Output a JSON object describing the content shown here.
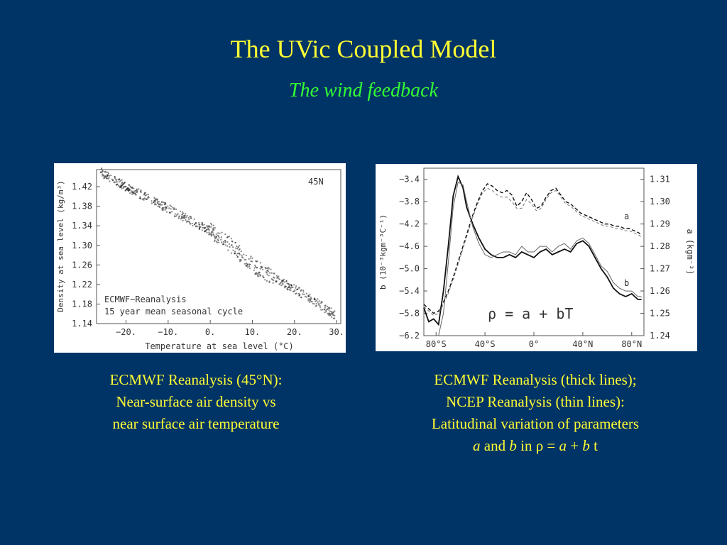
{
  "slide": {
    "title": "The UVic Coupled Model",
    "subtitle": "The wind feedback"
  },
  "left_caption": {
    "line1": "ECMWF Reanalysis (45°N):",
    "line2": "Near-surface air density vs",
    "line3": "near surface air temperature"
  },
  "right_caption": {
    "line1": "ECMWF Reanalysis (thick lines);",
    "line2": "NCEP Reanalysis (thin lines):",
    "line3": "Latitudinal variation of parameters",
    "a": "a",
    "and": "and",
    "b": "b",
    "in": "in ρ =",
    "a2": "a",
    "plus": "+",
    "b2": "b",
    "t": "t"
  },
  "colors": {
    "background": "#003366",
    "title": "#ffff33",
    "subtitle": "#33ff33",
    "caption": "#ffff33"
  },
  "chart_data": [
    {
      "type": "scatter",
      "xlabel": "Temperature at sea level (°C)",
      "ylabel": "Density at sea level (kg/m³)",
      "annotation_corner": "45N",
      "legend_line1": "ECMWF−Reanalysis",
      "legend_line2": "15 year mean seasonal cycle",
      "xlim": [
        -27,
        31
      ],
      "ylim": [
        1.14,
        1.455
      ],
      "x_ticks": [
        -20,
        -10,
        0,
        10,
        20,
        30
      ],
      "x_tick_labels": [
        "−20.",
        "−10.",
        "0.",
        "10.",
        "20.",
        "30."
      ],
      "y_ticks": [
        1.14,
        1.18,
        1.22,
        1.26,
        1.3,
        1.34,
        1.38,
        1.42
      ],
      "y_tick_labels": [
        "1.14",
        "1.18",
        "1.22",
        "1.26",
        "1.30",
        "1.34",
        "1.38",
        "1.42"
      ],
      "trend": {
        "x": [
          -26,
          -20,
          -10,
          0,
          5,
          10,
          15,
          20,
          25,
          30
        ],
        "y": [
          1.45,
          1.42,
          1.375,
          1.33,
          1.3,
          1.26,
          1.235,
          1.21,
          1.185,
          1.155
        ]
      }
    },
    {
      "type": "line",
      "formula": "ρ = a + bT",
      "left_axis_label": "b (10⁻³kgm⁻³C⁻¹)",
      "right_axis_label": "a (kgm⁻³)",
      "x_ticks": [
        -80,
        -40,
        0,
        40,
        80
      ],
      "x_tick_labels": [
        "80°S",
        "40°S",
        "0°",
        "40°N",
        "80°N"
      ],
      "xlim": [
        -90,
        90
      ],
      "b_ylim": [
        -6.2,
        -3.2
      ],
      "b_ticks": [
        -6.2,
        -5.8,
        -5.4,
        -5.0,
        -4.6,
        -4.2,
        -3.8,
        -3.4
      ],
      "b_tick_labels": [
        "−6.2",
        "−5.8",
        "−5.4",
        "−5.0",
        "−4.6",
        "−4.2",
        "−3.8",
        "−3.4"
      ],
      "a_ylim": [
        1.24,
        1.315
      ],
      "a_ticks": [
        1.24,
        1.25,
        1.26,
        1.27,
        1.28,
        1.29,
        1.3,
        1.31
      ],
      "a_tick_labels": [
        "1.24",
        "1.25",
        "1.26",
        "1.27",
        "1.28",
        "1.29",
        "1.30",
        "1.31"
      ],
      "series": [
        {
          "name": "b",
          "label": "b",
          "source": "ECMWF",
          "style": "solid-thick",
          "axis": "left",
          "x": [
            -90,
            -86,
            -82,
            -78,
            -74,
            -70,
            -66,
            -62,
            -58,
            -55,
            -50,
            -45,
            -40,
            -35,
            -30,
            -25,
            -20,
            -15,
            -10,
            -5,
            0,
            5,
            10,
            15,
            20,
            25,
            30,
            35,
            40,
            45,
            50,
            55,
            60,
            65,
            70,
            75,
            80,
            85,
            88
          ],
          "y": [
            -5.7,
            -5.95,
            -5.9,
            -6.0,
            -5.4,
            -4.6,
            -3.7,
            -3.35,
            -3.55,
            -3.9,
            -4.2,
            -4.45,
            -4.65,
            -4.75,
            -4.8,
            -4.8,
            -4.75,
            -4.8,
            -4.7,
            -4.75,
            -4.8,
            -4.7,
            -4.65,
            -4.75,
            -4.7,
            -4.65,
            -4.7,
            -4.55,
            -4.5,
            -4.6,
            -4.8,
            -5.0,
            -5.15,
            -5.35,
            -5.45,
            -5.5,
            -5.45,
            -5.55,
            -5.55
          ]
        },
        {
          "name": "b-ncep",
          "source": "NCEP",
          "style": "solid-thin",
          "axis": "left",
          "x": [
            -78,
            -74,
            -70,
            -66,
            -62,
            -58,
            -55,
            -50,
            -45,
            -40,
            -35,
            -30,
            -25,
            -20,
            -15,
            -10,
            -5,
            0,
            5,
            10,
            15,
            20,
            25,
            30,
            35,
            40,
            45,
            50,
            55,
            60,
            65,
            70,
            75,
            80,
            85,
            88
          ],
          "y": [
            -6.6,
            -5.8,
            -4.9,
            -3.9,
            -3.45,
            -3.5,
            -3.8,
            -4.25,
            -4.55,
            -4.75,
            -4.8,
            -4.75,
            -4.7,
            -4.7,
            -4.75,
            -4.6,
            -4.7,
            -4.7,
            -4.6,
            -4.6,
            -4.7,
            -4.6,
            -4.55,
            -4.65,
            -4.5,
            -4.45,
            -4.55,
            -4.75,
            -4.95,
            -5.05,
            -5.25,
            -5.35,
            -5.4,
            -5.4,
            -5.5,
            -5.5
          ]
        },
        {
          "name": "a",
          "label": "a",
          "source": "ECMWF",
          "style": "dashed-thick",
          "axis": "right",
          "x": [
            -90,
            -86,
            -82,
            -78,
            -74,
            -70,
            -66,
            -62,
            -58,
            -54,
            -50,
            -46,
            -42,
            -38,
            -34,
            -30,
            -26,
            -22,
            -18,
            -14,
            -10,
            -6,
            -2,
            2,
            6,
            10,
            14,
            18,
            22,
            26,
            30,
            34,
            38,
            42,
            46,
            50,
            54,
            58,
            62,
            66,
            70,
            74,
            78,
            82,
            86,
            88
          ],
          "y": [
            1.254,
            1.252,
            1.25,
            1.251,
            1.255,
            1.26,
            1.266,
            1.273,
            1.28,
            1.287,
            1.294,
            1.3,
            1.305,
            1.308,
            1.307,
            1.305,
            1.304,
            1.305,
            1.303,
            1.298,
            1.3,
            1.304,
            1.301,
            1.297,
            1.298,
            1.302,
            1.305,
            1.306,
            1.303,
            1.3,
            1.299,
            1.297,
            1.295,
            1.294,
            1.293,
            1.292,
            1.291,
            1.29,
            1.29,
            1.289,
            1.289,
            1.288,
            1.288,
            1.287,
            1.286,
            1.285
          ]
        },
        {
          "name": "a-ncep",
          "source": "NCEP",
          "style": "dashed-thin",
          "axis": "right",
          "x": [
            -90,
            -86,
            -82,
            -78,
            -74,
            -70,
            -66,
            -62,
            -58,
            -54,
            -50,
            -46,
            -42,
            -38,
            -34,
            -30,
            -26,
            -22,
            -18,
            -14,
            -10,
            -6,
            -2,
            2,
            6,
            10,
            14,
            18,
            22,
            26,
            30,
            34,
            38,
            42,
            46,
            50,
            54,
            58,
            62,
            66,
            70,
            74,
            78,
            82,
            86,
            88
          ],
          "y": [
            1.253,
            1.251,
            1.249,
            1.25,
            1.254,
            1.259,
            1.265,
            1.272,
            1.279,
            1.286,
            1.293,
            1.299,
            1.304,
            1.306,
            1.305,
            1.303,
            1.302,
            1.302,
            1.3,
            1.297,
            1.297,
            1.301,
            1.299,
            1.296,
            1.297,
            1.301,
            1.304,
            1.305,
            1.302,
            1.299,
            1.298,
            1.296,
            1.294,
            1.293,
            1.292,
            1.291,
            1.29,
            1.289,
            1.289,
            1.288,
            1.288,
            1.287,
            1.287,
            1.286,
            1.285,
            1.284
          ]
        }
      ]
    }
  ]
}
